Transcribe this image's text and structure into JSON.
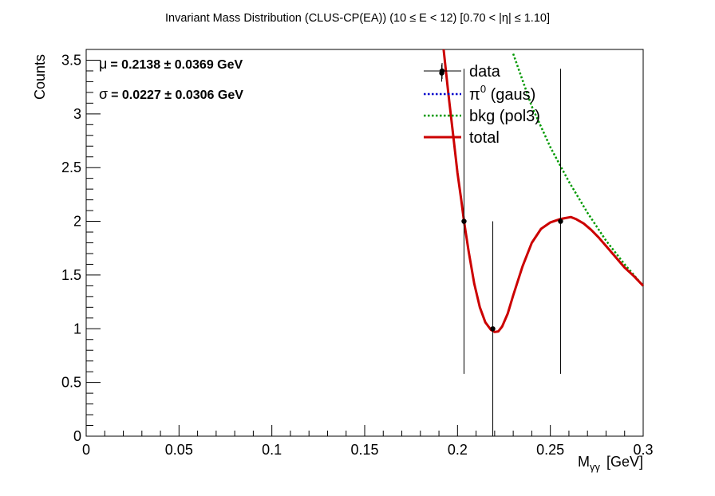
{
  "chart_data": {
    "type": "scatter",
    "title": "Invariant Mass Distribution (CLUS-CP(EA))   (10 ≤ E < 12)   [0.70 < |η| ≤ 1.10]",
    "xlabel": "M",
    "xlabel_sub": "γγ",
    "xlabel_unit": "[GeV]",
    "ylabel": "Counts",
    "xlim": [
      0,
      0.3
    ],
    "ylim": [
      0,
      3.6
    ],
    "x_ticks": [
      "0",
      "0.05",
      "0.1",
      "0.15",
      "0.2",
      "0.25",
      "0.3"
    ],
    "y_ticks": [
      "0",
      "0.5",
      "1",
      "1.5",
      "2",
      "2.5",
      "3",
      "3.5"
    ],
    "grid": false,
    "legend_position": "top-right",
    "stats": {
      "mu_symbol": "μ",
      "mu_text": "= 0.2138  ± 0.0369 GeV",
      "sigma_symbol": "σ",
      "sigma_text": "= 0.0227  ± 0.0306 GeV"
    },
    "series": [
      {
        "name": "data",
        "kind": "points",
        "color": "#000000",
        "points": [
          {
            "x": 0.1915,
            "y": 3.38,
            "yerr_low": 0.08,
            "yerr_high": 0.08
          },
          {
            "x": 0.2035,
            "y": 2.0,
            "yerr_low": 1.42,
            "yerr_high": 1.42
          },
          {
            "x": 0.219,
            "y": 1.0,
            "yerr_low": 1.0,
            "yerr_high": 1.0
          },
          {
            "x": 0.2555,
            "y": 2.0,
            "yerr_low": 1.42,
            "yerr_high": 1.42
          }
        ]
      },
      {
        "name": "π⁰ (gaus)",
        "legend_base": "π",
        "legend_sup": "0",
        "legend_rest": " (gaus)",
        "kind": "dotted-line",
        "color": "#0000cc",
        "x": [],
        "y": []
      },
      {
        "name": "bkg (pol3)",
        "kind": "dotted-line",
        "color": "#009900",
        "x": [
          0.23,
          0.24,
          0.25,
          0.255,
          0.26,
          0.27,
          0.28,
          0.29,
          0.3
        ],
        "y": [
          3.56,
          3.07,
          2.69,
          2.53,
          2.37,
          2.08,
          1.82,
          1.6,
          1.4
        ]
      },
      {
        "name": "total",
        "kind": "solid-line",
        "color": "#cc0000",
        "x": [
          0.1925,
          0.195,
          0.198,
          0.2,
          0.202,
          0.2035,
          0.206,
          0.209,
          0.212,
          0.215,
          0.218,
          0.22,
          0.222,
          0.224,
          0.227,
          0.23,
          0.235,
          0.24,
          0.245,
          0.25,
          0.255,
          0.258,
          0.261,
          0.264,
          0.268,
          0.272,
          0.276,
          0.28,
          0.285,
          0.29,
          0.295,
          0.3
        ],
        "y": [
          3.6,
          3.2,
          2.75,
          2.45,
          2.2,
          2.0,
          1.72,
          1.42,
          1.2,
          1.06,
          0.99,
          0.97,
          0.975,
          1.02,
          1.14,
          1.31,
          1.58,
          1.8,
          1.93,
          1.99,
          2.02,
          2.03,
          2.04,
          2.02,
          1.98,
          1.92,
          1.85,
          1.77,
          1.67,
          1.57,
          1.49,
          1.4
        ]
      }
    ]
  }
}
